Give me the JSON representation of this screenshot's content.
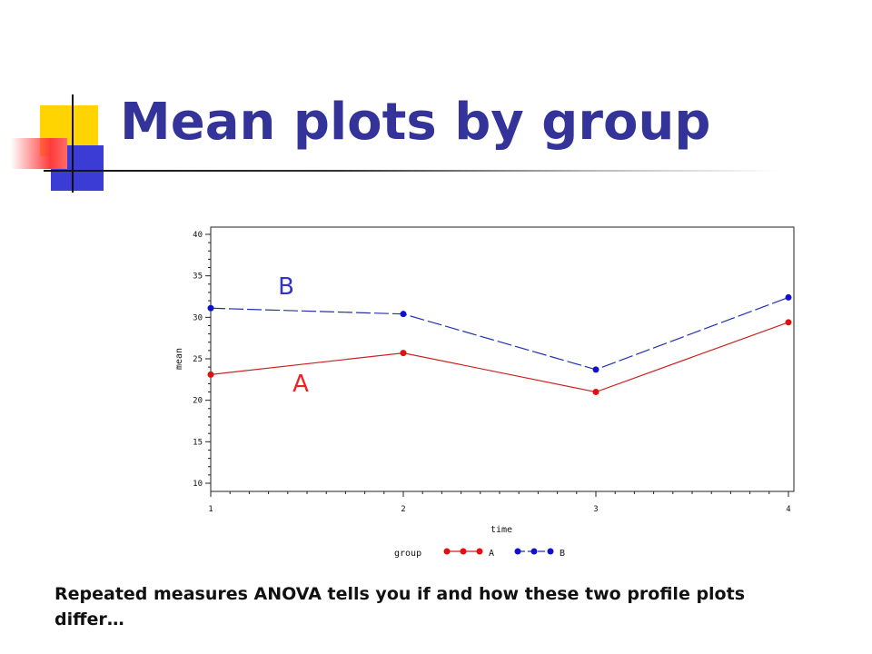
{
  "slide": {
    "title": "Mean plots by group",
    "caption": "Repeated measures ANOVA tells you if and how these two profile plots differ…"
  },
  "chart_data": {
    "type": "line",
    "x": [
      1,
      2,
      3,
      4
    ],
    "xlabel": "time",
    "ylabel": "mean",
    "xlim": [
      1,
      4
    ],
    "ylim": [
      10,
      40
    ],
    "yticks": [
      10,
      15,
      20,
      25,
      30,
      35,
      40
    ],
    "xticks": [
      1,
      2,
      3,
      4
    ],
    "series": [
      {
        "name": "A",
        "values": [
          23.1,
          25.7,
          21.0,
          29.4
        ],
        "color": "#cc2222",
        "marker_color": "#dd1111",
        "dash": "solid"
      },
      {
        "name": "B",
        "values": [
          31.1,
          30.4,
          23.7,
          32.4
        ],
        "color": "#2233aa",
        "marker_color": "#1111cc",
        "dash": "dashed"
      }
    ],
    "legend": {
      "title": "group",
      "position": "bottom"
    },
    "annotations": [
      {
        "text": "B",
        "color": "#3333cc"
      },
      {
        "text": "A",
        "color": "#ee2222"
      }
    ],
    "grid": false
  }
}
